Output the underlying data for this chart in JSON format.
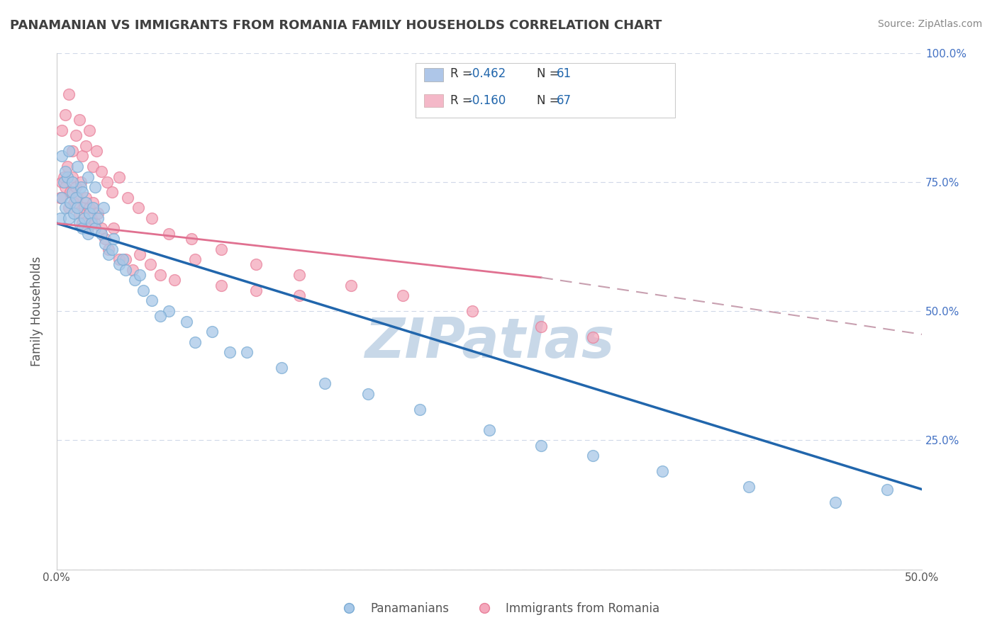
{
  "title": "PANAMANIAN VS IMMIGRANTS FROM ROMANIA FAMILY HOUSEHOLDS CORRELATION CHART",
  "source_text": "Source: ZipAtlas.com",
  "ylabel": "Family Households",
  "x_min": 0.0,
  "x_max": 0.5,
  "y_min": 0.0,
  "y_max": 1.0,
  "x_ticks": [
    0.0,
    0.1,
    0.2,
    0.3,
    0.4,
    0.5
  ],
  "x_tick_labels": [
    "0.0%",
    "",
    "",
    "",
    "",
    "50.0%"
  ],
  "y_ticks_right": [
    0.0,
    0.25,
    0.5,
    0.75,
    1.0
  ],
  "y_tick_labels_right": [
    "",
    "25.0%",
    "50.0%",
    "75.0%",
    "100.0%"
  ],
  "legend_blue_color": "#aec6e8",
  "legend_pink_color": "#f4b8c8",
  "series1_color": "#a8c8e8",
  "series2_color": "#f4a8bc",
  "series1_edge": "#7aacd4",
  "series2_edge": "#e8809a",
  "trend1_color": "#2166ac",
  "trend2_solid_color": "#e07090",
  "trend2_dash_color": "#c8a0b0",
  "watermark": "ZIPatlas",
  "watermark_color": "#c8d8e8",
  "background_color": "#ffffff",
  "grid_color": "#d0d8e8",
  "title_color": "#404040",
  "legend_label1": "Panamanians",
  "legend_label2": "Immigrants from Romania",
  "blue_scatter_x": [
    0.002,
    0.003,
    0.004,
    0.005,
    0.006,
    0.007,
    0.008,
    0.009,
    0.01,
    0.011,
    0.012,
    0.013,
    0.014,
    0.015,
    0.016,
    0.017,
    0.018,
    0.019,
    0.02,
    0.021,
    0.022,
    0.024,
    0.026,
    0.028,
    0.03,
    0.033,
    0.036,
    0.04,
    0.045,
    0.05,
    0.055,
    0.065,
    0.075,
    0.09,
    0.11,
    0.13,
    0.155,
    0.18,
    0.21,
    0.25,
    0.28,
    0.31,
    0.35,
    0.4,
    0.45,
    0.003,
    0.005,
    0.007,
    0.009,
    0.012,
    0.015,
    0.018,
    0.022,
    0.027,
    0.032,
    0.038,
    0.048,
    0.06,
    0.08,
    0.1,
    0.48
  ],
  "blue_scatter_y": [
    0.68,
    0.72,
    0.75,
    0.7,
    0.76,
    0.68,
    0.71,
    0.73,
    0.69,
    0.72,
    0.7,
    0.67,
    0.74,
    0.66,
    0.68,
    0.71,
    0.65,
    0.69,
    0.67,
    0.7,
    0.66,
    0.68,
    0.65,
    0.63,
    0.61,
    0.64,
    0.59,
    0.58,
    0.56,
    0.54,
    0.52,
    0.5,
    0.48,
    0.46,
    0.42,
    0.39,
    0.36,
    0.34,
    0.31,
    0.27,
    0.24,
    0.22,
    0.19,
    0.16,
    0.13,
    0.8,
    0.77,
    0.81,
    0.75,
    0.78,
    0.73,
    0.76,
    0.74,
    0.7,
    0.62,
    0.6,
    0.57,
    0.49,
    0.44,
    0.42,
    0.155
  ],
  "pink_scatter_x": [
    0.002,
    0.003,
    0.004,
    0.005,
    0.006,
    0.007,
    0.008,
    0.009,
    0.01,
    0.011,
    0.012,
    0.013,
    0.014,
    0.015,
    0.016,
    0.017,
    0.018,
    0.019,
    0.02,
    0.021,
    0.022,
    0.024,
    0.026,
    0.028,
    0.03,
    0.033,
    0.036,
    0.04,
    0.044,
    0.048,
    0.054,
    0.06,
    0.068,
    0.08,
    0.095,
    0.115,
    0.14,
    0.003,
    0.005,
    0.007,
    0.009,
    0.011,
    0.013,
    0.015,
    0.017,
    0.019,
    0.021,
    0.023,
    0.026,
    0.029,
    0.032,
    0.036,
    0.041,
    0.047,
    0.055,
    0.065,
    0.078,
    0.095,
    0.115,
    0.14,
    0.17,
    0.2,
    0.24,
    0.28,
    0.31
  ],
  "pink_scatter_y": [
    0.72,
    0.75,
    0.76,
    0.74,
    0.78,
    0.7,
    0.73,
    0.76,
    0.71,
    0.74,
    0.72,
    0.69,
    0.75,
    0.67,
    0.7,
    0.72,
    0.66,
    0.7,
    0.68,
    0.71,
    0.67,
    0.69,
    0.66,
    0.64,
    0.62,
    0.66,
    0.6,
    0.6,
    0.58,
    0.61,
    0.59,
    0.57,
    0.56,
    0.6,
    0.55,
    0.54,
    0.53,
    0.85,
    0.88,
    0.92,
    0.81,
    0.84,
    0.87,
    0.8,
    0.82,
    0.85,
    0.78,
    0.81,
    0.77,
    0.75,
    0.73,
    0.76,
    0.72,
    0.7,
    0.68,
    0.65,
    0.64,
    0.62,
    0.59,
    0.57,
    0.55,
    0.53,
    0.5,
    0.47,
    0.45
  ],
  "trend1_x0": 0.0,
  "trend1_y0": 0.67,
  "trend1_x1": 0.5,
  "trend1_y1": 0.155,
  "trend2_solid_x0": 0.0,
  "trend2_solid_y0": 0.67,
  "trend2_solid_x1": 0.28,
  "trend2_solid_y1": 0.565,
  "trend2_dash_x0": 0.28,
  "trend2_dash_y0": 0.565,
  "trend2_dash_x1": 0.5,
  "trend2_dash_y1": 0.455
}
